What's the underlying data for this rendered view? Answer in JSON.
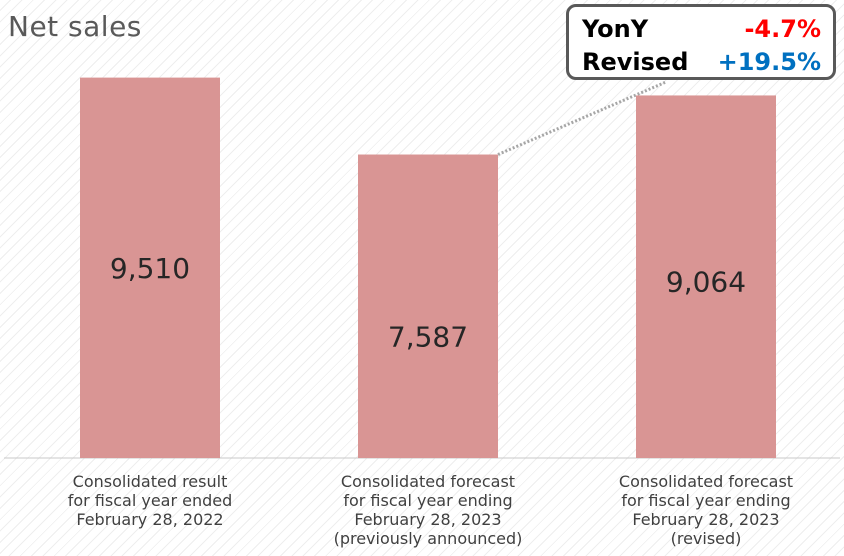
{
  "title": "Net sales",
  "callout": {
    "yoy_label": "YonY",
    "yoy_value": "-4.7%",
    "revised_label": "Revised",
    "revised_value": "+19.5%"
  },
  "colors": {
    "bar": "#d99594",
    "yoy": "#ff0000",
    "revised": "#0070c0"
  },
  "chart_data": {
    "type": "bar",
    "title": "Net sales",
    "categories": [
      [
        "Consolidated result",
        "for fiscal year ended",
        "February 28, 2022"
      ],
      [
        "Consolidated forecast",
        "for fiscal year ending",
        "February 28, 2023",
        "(previously announced)"
      ],
      [
        "Consolidated forecast",
        "for fiscal year ending",
        "February 28, 2023",
        "(revised)"
      ]
    ],
    "values": [
      9510,
      7587,
      9064
    ],
    "value_labels": [
      "9,510",
      "7,587",
      "9,064"
    ],
    "ylim": [
      0,
      10000
    ],
    "grid": false,
    "legend": "none"
  }
}
